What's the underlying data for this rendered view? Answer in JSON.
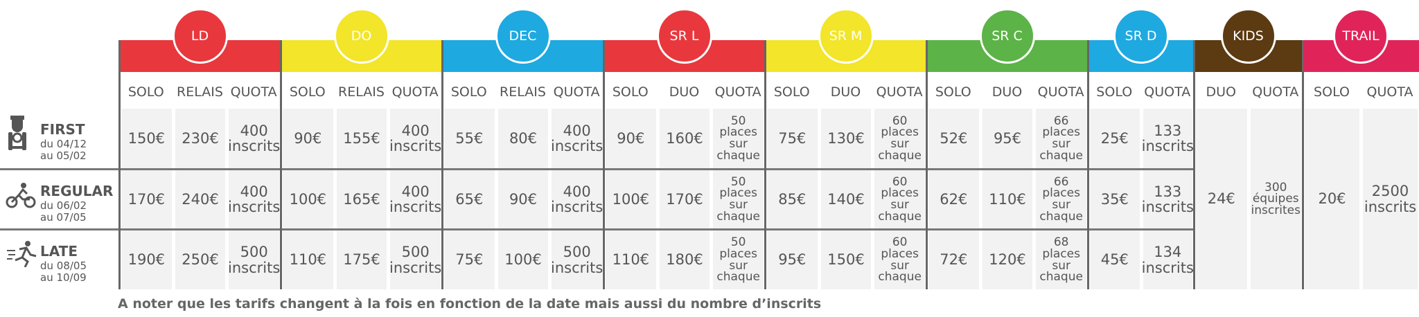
{
  "table": {
    "tiers": [
      {
        "name": "FIRST",
        "dates": [
          "du 04/12",
          "au 05/02"
        ]
      },
      {
        "name": "REGULAR",
        "dates": [
          "du 06/02",
          "au 07/05"
        ]
      },
      {
        "name": "LATE",
        "dates": [
          "du 08/05",
          "au 10/09"
        ]
      }
    ],
    "groups": [
      {
        "name": "LD",
        "color": "#e8383d",
        "columns": [
          "SOLO",
          "RELAIS",
          "QUOTA"
        ],
        "rows": [
          [
            "150€",
            "230€",
            "400 inscrits"
          ],
          [
            "170€",
            "240€",
            "400 inscrits"
          ],
          [
            "190€",
            "250€",
            "500 inscrits"
          ]
        ]
      },
      {
        "name": "DO",
        "color": "#f2e52a",
        "columns": [
          "SOLO",
          "RELAIS",
          "QUOTA"
        ],
        "rows": [
          [
            "90€",
            "155€",
            "400 inscrits"
          ],
          [
            "100€",
            "165€",
            "400 inscrits"
          ],
          [
            "110€",
            "175€",
            "500 inscrits"
          ]
        ]
      },
      {
        "name": "DEC",
        "color": "#1ea9e1",
        "columns": [
          "SOLO",
          "RELAIS",
          "QUOTA"
        ],
        "rows": [
          [
            "55€",
            "80€",
            "400 inscrits"
          ],
          [
            "65€",
            "90€",
            "400 inscrits"
          ],
          [
            "75€",
            "100€",
            "500 inscrits"
          ]
        ]
      },
      {
        "name": "SR L",
        "color": "#e8383d",
        "columns": [
          "SOLO",
          "DUO",
          "QUOTA"
        ],
        "rows": [
          [
            "90€",
            "160€",
            "50 places sur chaque"
          ],
          [
            "100€",
            "170€",
            "50 places sur chaque"
          ],
          [
            "110€",
            "180€",
            "50 places sur chaque"
          ]
        ]
      },
      {
        "name": "SR M",
        "color": "#f2e52a",
        "columns": [
          "SOLO",
          "DUO",
          "QUOTA"
        ],
        "rows": [
          [
            "75€",
            "130€",
            "60 places sur chaque"
          ],
          [
            "85€",
            "140€",
            "60 places sur chaque"
          ],
          [
            "95€",
            "150€",
            "60 places sur chaque"
          ]
        ]
      },
      {
        "name": "SR C",
        "color": "#5cb347",
        "columns": [
          "SOLO",
          "DUO",
          "QUOTA"
        ],
        "rows": [
          [
            "52€",
            "95€",
            "66 places sur chaque"
          ],
          [
            "62€",
            "110€",
            "66 places sur chaque"
          ],
          [
            "72€",
            "120€",
            "68 places sur chaque"
          ]
        ]
      },
      {
        "name": "SR D",
        "color": "#1ea9e1",
        "columns": [
          "SOLO",
          "QUOTA"
        ],
        "rows": [
          [
            "25€",
            "133 inscrits"
          ],
          [
            "35€",
            "133 inscrits"
          ],
          [
            "45€",
            "134 inscrits"
          ]
        ]
      },
      {
        "name": "KIDS",
        "color": "#5c3a12",
        "columns": [
          "DUO",
          "QUOTA"
        ],
        "rows": [
          [
            "24€",
            "300 équipes inscrites"
          ]
        ]
      },
      {
        "name": "TRAIL",
        "color": "#e0245a",
        "columns": [
          "SOLO",
          "QUOTA"
        ],
        "rows": [
          [
            "20€",
            "2500 inscrits"
          ]
        ]
      }
    ],
    "note": "A noter que les tarifs changent à la fois en fonction de la date mais aussi du nombre d’inscrits"
  }
}
